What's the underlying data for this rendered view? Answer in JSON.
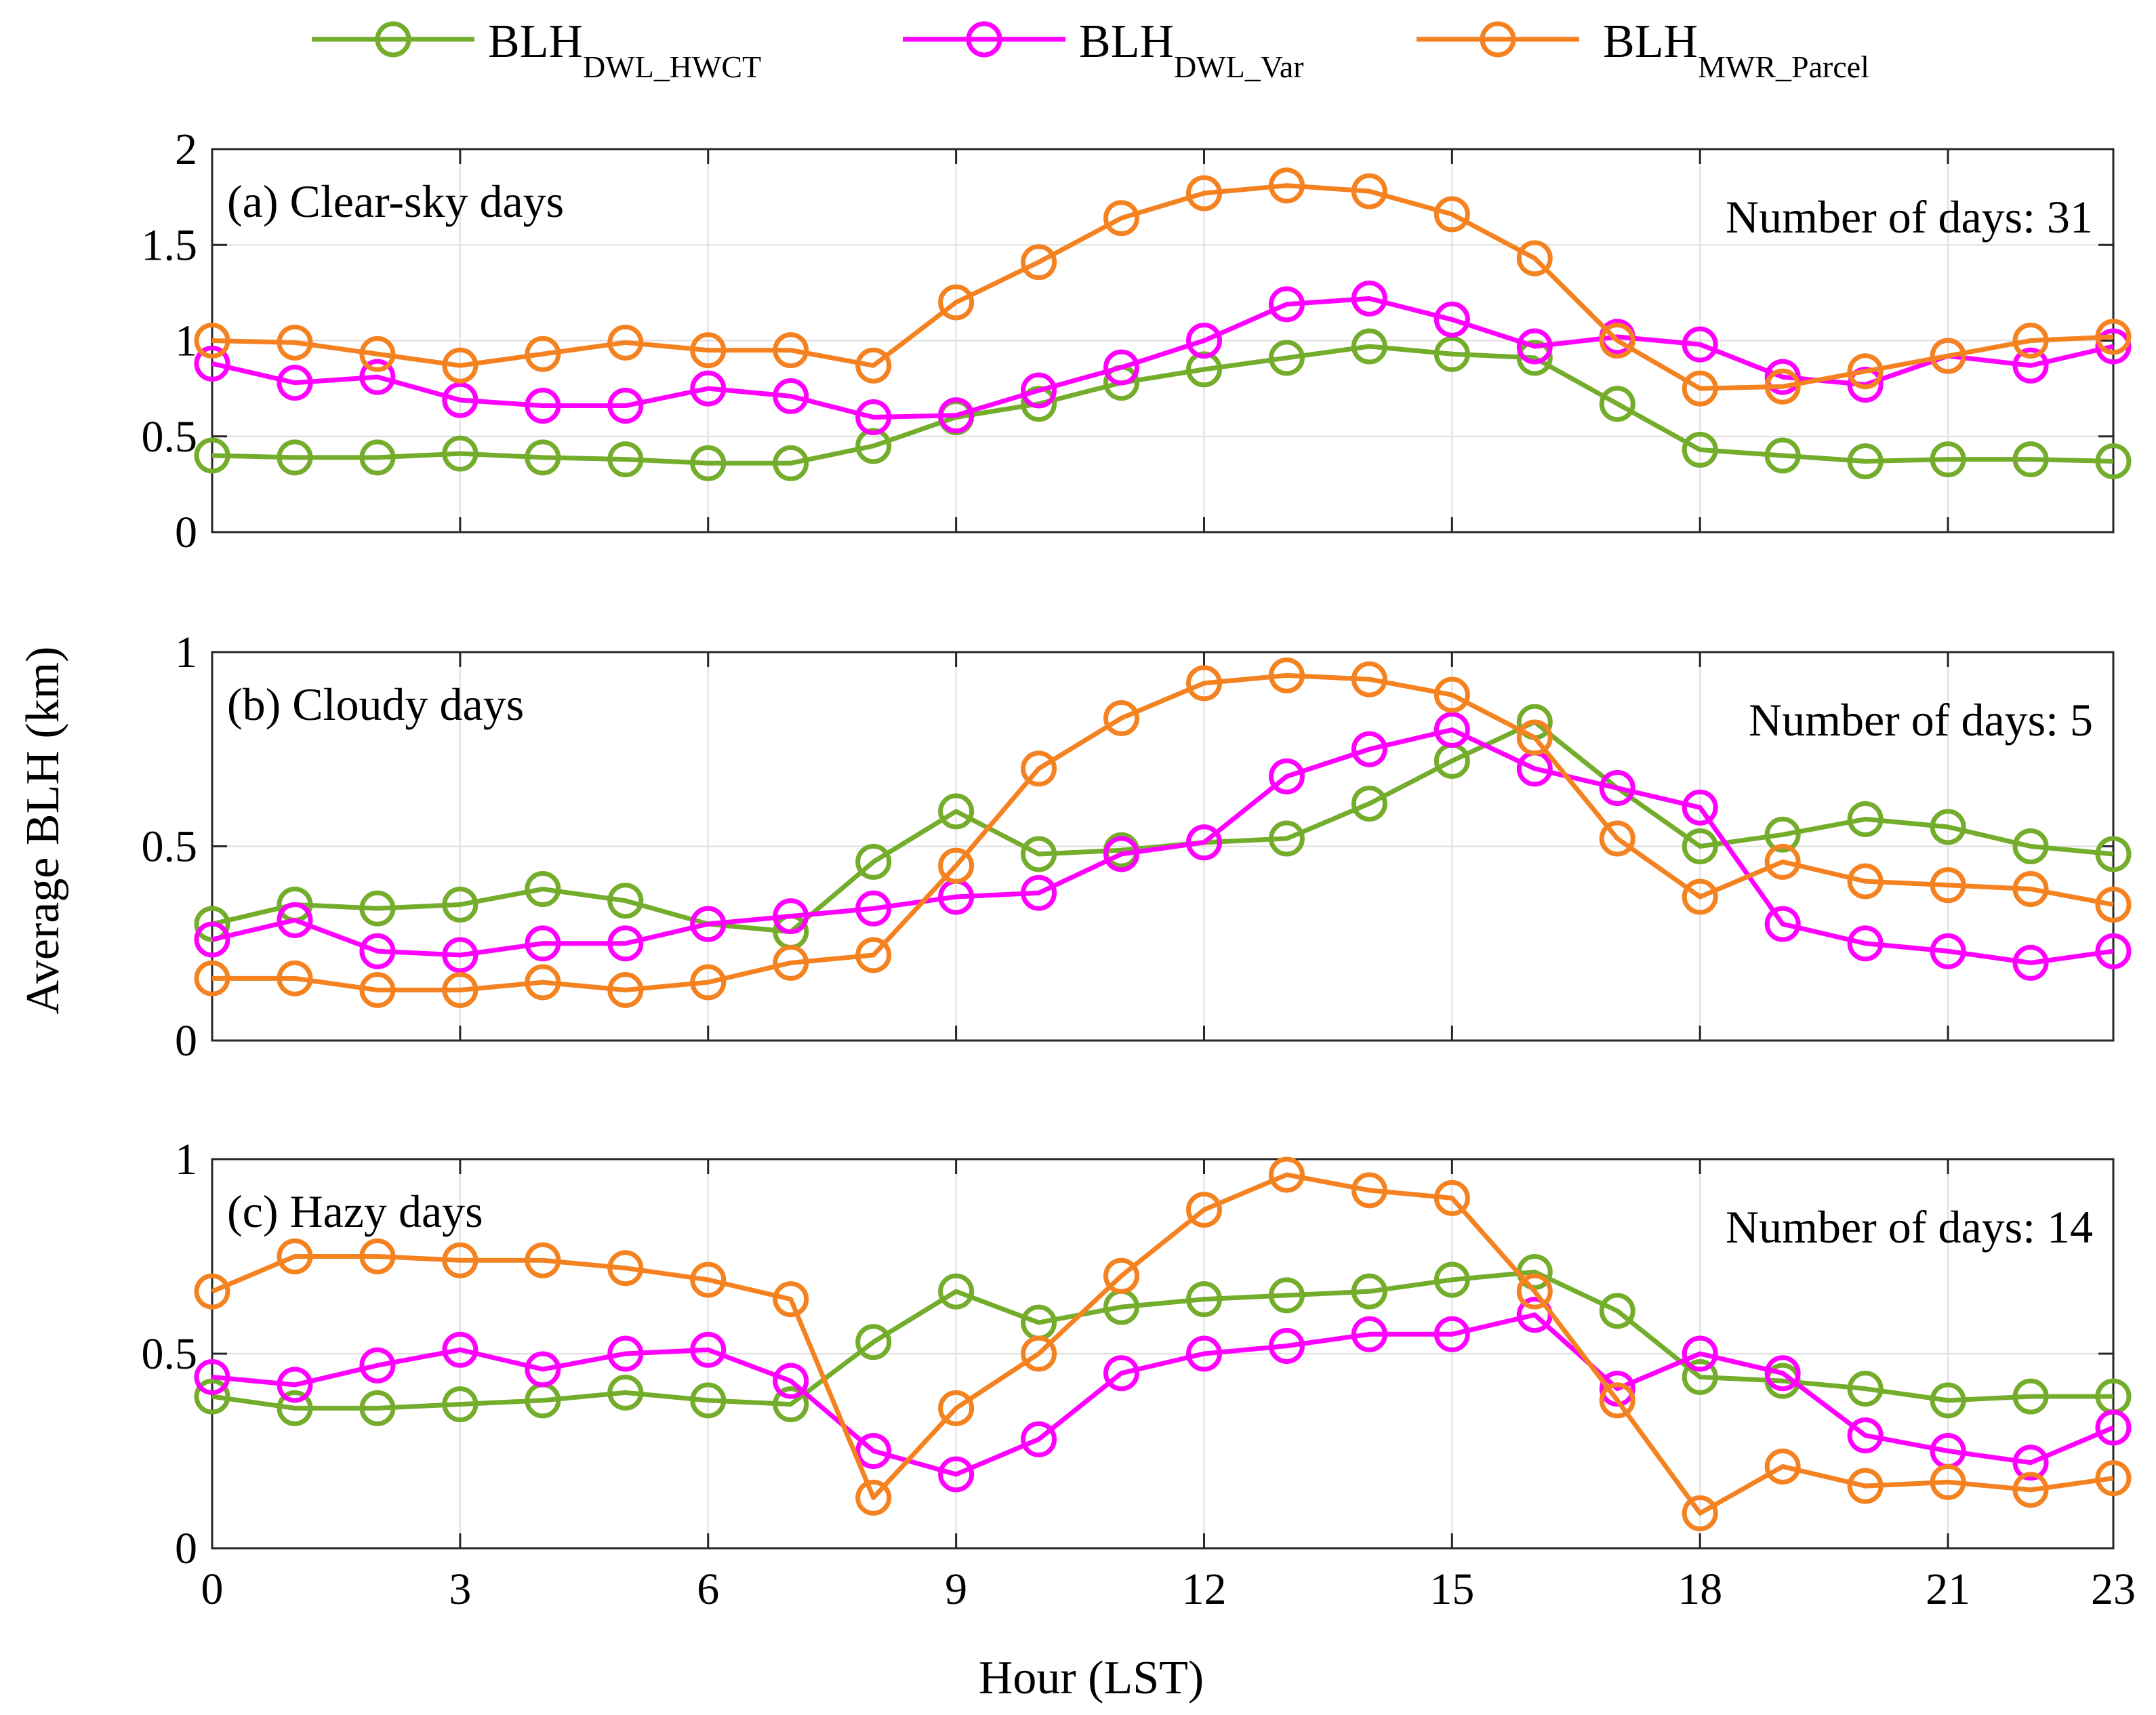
{
  "legend": {
    "entries": [
      {
        "main": "BLH",
        "sub": "DWL_HWCT",
        "color": "#74ac2c"
      },
      {
        "main": "BLH",
        "sub": "DWL_Var",
        "color": "#ff00ff"
      },
      {
        "main": "BLH",
        "sub": "MWR_Parcel",
        "color": "#f58220"
      }
    ]
  },
  "xlabel": "Hour (LST)",
  "ylabel": "Average BLH (km)",
  "chart_data": [
    {
      "type": "line",
      "title": "(a) Clear-sky days",
      "days_label": "Number of days: 31",
      "x": [
        0,
        1,
        2,
        3,
        4,
        5,
        6,
        7,
        8,
        9,
        10,
        11,
        12,
        13,
        14,
        15,
        16,
        17,
        18,
        19,
        20,
        21,
        22,
        23
      ],
      "xticks": [
        0,
        3,
        6,
        9,
        12,
        15,
        18,
        21,
        23
      ],
      "xlim": [
        0,
        23
      ],
      "ylim": [
        0,
        2
      ],
      "yticks": [
        0,
        0.5,
        1,
        1.5,
        2
      ],
      "ytick_labels": [
        "0",
        "0.5",
        "1",
        "1.5",
        "2"
      ],
      "grid": true,
      "series": [
        {
          "name": "BLH DWL_HWCT",
          "color": "#74ac2c",
          "values": [
            0.4,
            0.39,
            0.39,
            0.41,
            0.39,
            0.38,
            0.36,
            0.36,
            0.45,
            0.6,
            0.67,
            0.78,
            0.85,
            0.91,
            0.97,
            0.93,
            0.91,
            0.67,
            0.43,
            0.4,
            0.37,
            0.38,
            0.38,
            0.37
          ]
        },
        {
          "name": "BLH DWL_Var",
          "color": "#ff00ff",
          "values": [
            0.88,
            0.78,
            0.81,
            0.69,
            0.66,
            0.66,
            0.75,
            0.71,
            0.6,
            0.61,
            0.74,
            0.86,
            1.0,
            1.19,
            1.22,
            1.11,
            0.97,
            1.02,
            0.98,
            0.81,
            0.77,
            0.92,
            0.87,
            0.97
          ]
        },
        {
          "name": "BLH MWR_Parcel",
          "color": "#f58220",
          "values": [
            1.0,
            0.99,
            0.93,
            0.87,
            0.93,
            0.99,
            0.95,
            0.95,
            0.87,
            1.2,
            1.41,
            1.64,
            1.77,
            1.81,
            1.78,
            1.66,
            1.43,
            1.0,
            0.75,
            0.76,
            0.84,
            0.92,
            1.0,
            1.02
          ]
        }
      ]
    },
    {
      "type": "line",
      "title": "(b) Cloudy days",
      "days_label": "Number of days: 5",
      "x": [
        0,
        1,
        2,
        3,
        4,
        5,
        6,
        7,
        8,
        9,
        10,
        11,
        12,
        13,
        14,
        15,
        16,
        17,
        18,
        19,
        20,
        21,
        22,
        23
      ],
      "xticks": [
        0,
        3,
        6,
        9,
        12,
        15,
        18,
        21,
        23
      ],
      "xlim": [
        0,
        23
      ],
      "ylim": [
        0,
        1
      ],
      "yticks": [
        0,
        0.5,
        1
      ],
      "ytick_labels": [
        "0",
        "0.5",
        "1"
      ],
      "grid": true,
      "series": [
        {
          "name": "BLH DWL_HWCT",
          "color": "#74ac2c",
          "values": [
            0.3,
            0.35,
            0.34,
            0.35,
            0.39,
            0.36,
            0.3,
            0.28,
            0.46,
            0.59,
            0.48,
            0.49,
            0.51,
            0.52,
            0.61,
            0.72,
            0.82,
            0.65,
            0.5,
            0.53,
            0.57,
            0.55,
            0.5,
            0.48
          ]
        },
        {
          "name": "BLH DWL_Var",
          "color": "#ff00ff",
          "values": [
            0.26,
            0.31,
            0.23,
            0.22,
            0.25,
            0.25,
            0.3,
            0.32,
            0.34,
            0.37,
            0.38,
            0.48,
            0.51,
            0.68,
            0.75,
            0.8,
            0.7,
            0.65,
            0.6,
            0.3,
            0.25,
            0.23,
            0.2,
            0.23
          ]
        },
        {
          "name": "BLH MWR_Parcel",
          "color": "#f58220",
          "values": [
            0.16,
            0.16,
            0.13,
            0.13,
            0.15,
            0.13,
            0.15,
            0.2,
            0.22,
            0.45,
            0.7,
            0.83,
            0.92,
            0.94,
            0.93,
            0.89,
            0.78,
            0.52,
            0.37,
            0.46,
            0.41,
            0.4,
            0.39,
            0.35
          ]
        }
      ]
    },
    {
      "type": "line",
      "title": "(c) Hazy days",
      "days_label": "Number of days: 14",
      "x": [
        0,
        1,
        2,
        3,
        4,
        5,
        6,
        7,
        8,
        9,
        10,
        11,
        12,
        13,
        14,
        15,
        16,
        17,
        18,
        19,
        20,
        21,
        22,
        23
      ],
      "xticks": [
        0,
        3,
        6,
        9,
        12,
        15,
        18,
        21,
        23
      ],
      "xlim": [
        0,
        23
      ],
      "ylim": [
        0,
        1
      ],
      "yticks": [
        0,
        0.5,
        1
      ],
      "ytick_labels": [
        "0",
        "0.5",
        "1"
      ],
      "grid": true,
      "series": [
        {
          "name": "BLH DWL_HWCT",
          "color": "#74ac2c",
          "values": [
            0.39,
            0.36,
            0.36,
            0.37,
            0.38,
            0.4,
            0.38,
            0.37,
            0.53,
            0.66,
            0.58,
            0.62,
            0.64,
            0.65,
            0.66,
            0.69,
            0.71,
            0.61,
            0.44,
            0.43,
            0.41,
            0.38,
            0.39,
            0.39
          ]
        },
        {
          "name": "BLH DWL_Var",
          "color": "#ff00ff",
          "values": [
            0.44,
            0.42,
            0.47,
            0.51,
            0.46,
            0.5,
            0.51,
            0.43,
            0.25,
            0.19,
            0.28,
            0.45,
            0.5,
            0.52,
            0.55,
            0.55,
            0.6,
            0.41,
            0.5,
            0.45,
            0.29,
            0.25,
            0.22,
            0.31
          ]
        },
        {
          "name": "BLH MWR_Parcel",
          "color": "#f58220",
          "values": [
            0.66,
            0.75,
            0.75,
            0.74,
            0.74,
            0.72,
            0.69,
            0.64,
            0.13,
            0.36,
            0.5,
            0.7,
            0.87,
            0.96,
            0.92,
            0.9,
            0.66,
            0.38,
            0.09,
            0.21,
            0.16,
            0.17,
            0.15,
            0.18
          ]
        }
      ]
    }
  ]
}
